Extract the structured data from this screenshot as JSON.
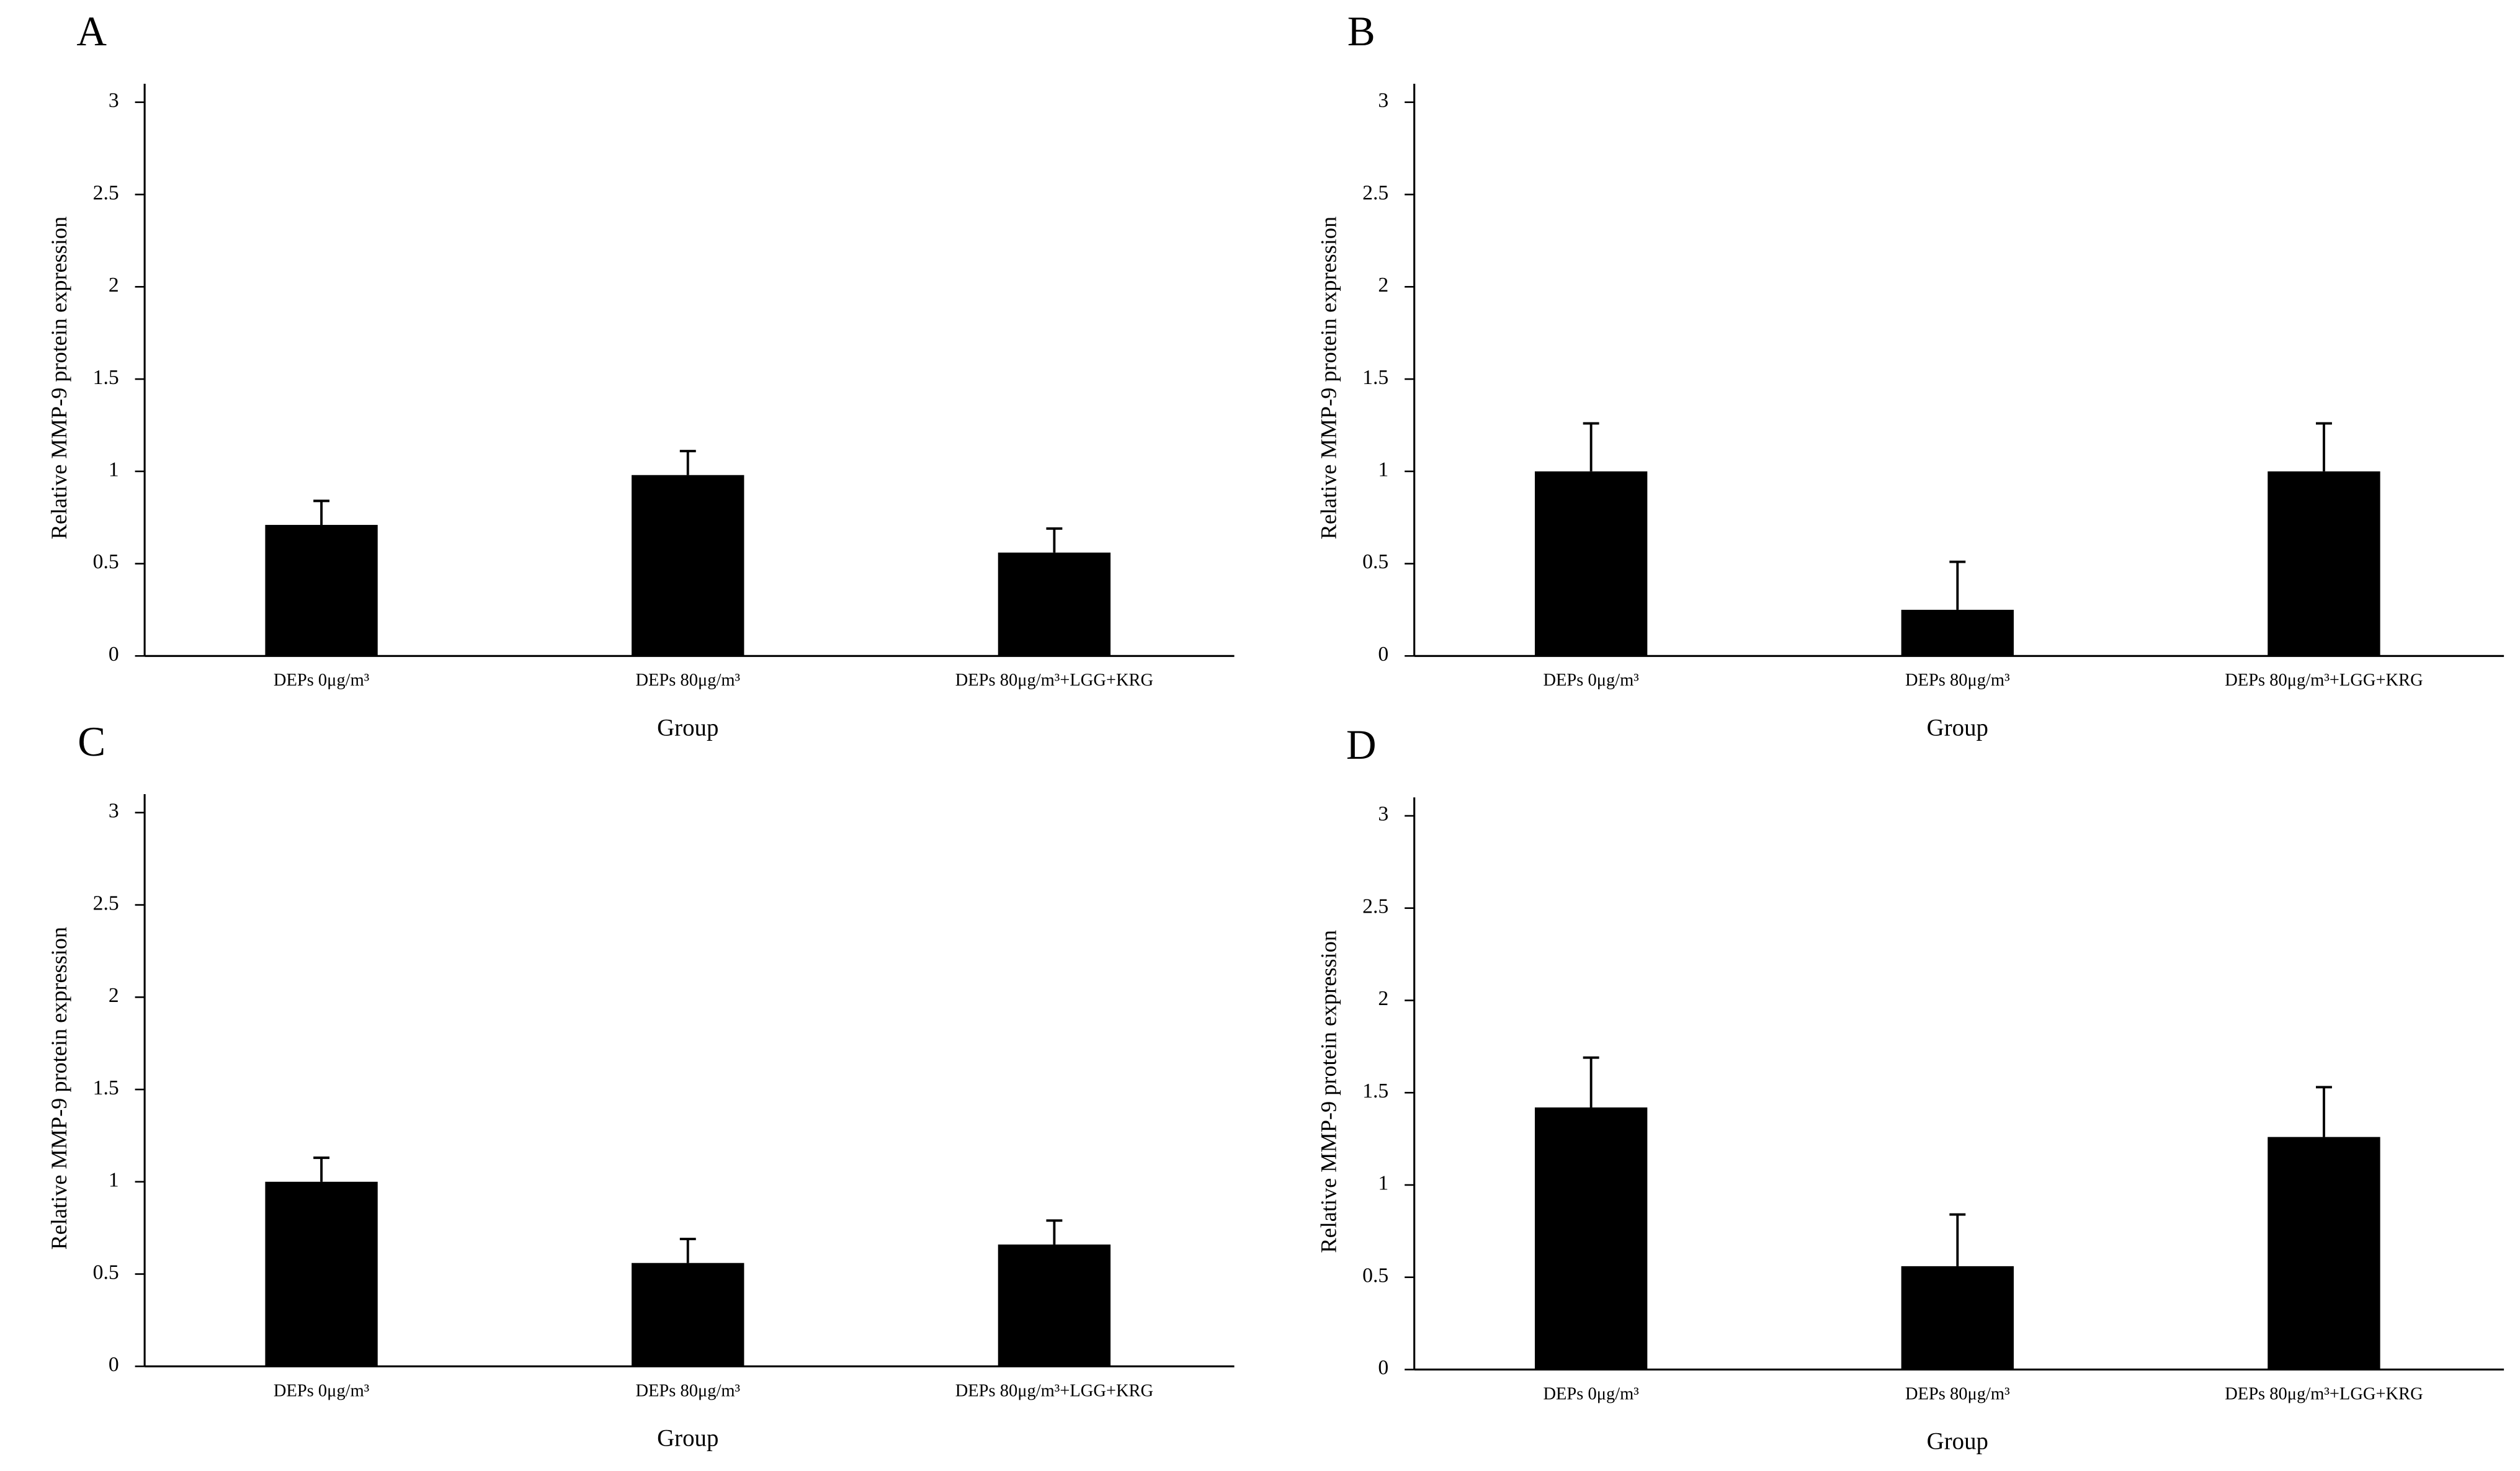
{
  "chart_data": [
    {
      "type": "bar",
      "title": "A",
      "x_label": "Group",
      "y_label": "Relative MMP-9 protein expression",
      "categories": [
        "DEPs 0μg/m³",
        "DEPs 80μg/m³",
        "DEPs 80μg/m³+LGG+KRG"
      ],
      "values": [
        0.71,
        0.98,
        0.56
      ],
      "errors": [
        0.13,
        0.13,
        0.13
      ],
      "color": "#000000",
      "ylim": [
        0,
        3.1
      ],
      "yticks": [
        0,
        0.5,
        1,
        1.5,
        2,
        2.5,
        3
      ]
    },
    {
      "type": "bar",
      "title": "B",
      "x_label": "Group",
      "y_label": "Relative MMP-9 protein expression",
      "categories": [
        "DEPs 0μg/m³",
        "DEPs 80μg/m³",
        "DEPs 80μg/m³+LGG+KRG"
      ],
      "values": [
        1.0,
        0.25,
        1.0
      ],
      "errors": [
        0.26,
        0.26,
        0.26
      ],
      "color": "#000000",
      "ylim": [
        0,
        3.1
      ],
      "yticks": [
        0,
        0.5,
        1,
        1.5,
        2,
        2.5,
        3
      ]
    },
    {
      "type": "bar",
      "title": "C",
      "x_label": "Group",
      "y_label": "Relative MMP-9 protein expression",
      "categories": [
        "DEPs 0μg/m³",
        "DEPs 80μg/m³",
        "DEPs 80μg/m³+LGG+KRG"
      ],
      "values": [
        1.0,
        0.56,
        0.66
      ],
      "errors": [
        0.13,
        0.13,
        0.13
      ],
      "color": "#000000",
      "ylim": [
        0,
        3.1
      ],
      "yticks": [
        0,
        0.5,
        1,
        1.5,
        2,
        2.5,
        3
      ]
    },
    {
      "type": "bar",
      "title": "D",
      "x_label": "Group",
      "y_label": "Relative MMP-9 protein expression",
      "categories": [
        "DEPs 0μg/m³",
        "DEPs 80μg/m³",
        "DEPs 80μg/m³+LGG+KRG"
      ],
      "values": [
        1.42,
        0.56,
        1.26
      ],
      "errors": [
        0.27,
        0.28,
        0.27
      ],
      "color": "#000000",
      "ylim": [
        0,
        3.1
      ],
      "yticks": [
        0,
        0.5,
        1,
        1.5,
        2,
        2.5,
        3
      ]
    }
  ]
}
